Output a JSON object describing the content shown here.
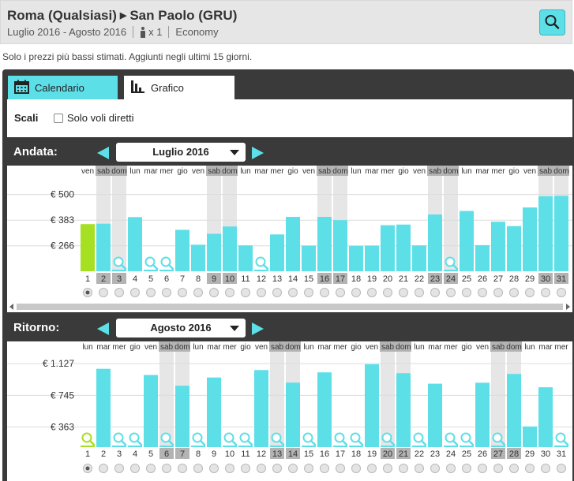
{
  "header": {
    "origin": "Roma (Qualsiasi)",
    "destination": "San Paolo (GRU)",
    "dates": "Luglio 2016 - Agosto 2016",
    "passengers": "x 1",
    "cabin": "Economy"
  },
  "note": "Solo i prezzi più bassi stimati. Aggiunti negli ultimi 15 giorni.",
  "tabs": [
    {
      "label": "Calendario",
      "icon": "calendar-icon",
      "active": false
    },
    {
      "label": "Grafico",
      "icon": "bar-chart-icon",
      "active": true
    }
  ],
  "filters": {
    "scale_label": "Scali",
    "direct_only_label": "Solo voli diretti",
    "direct_only_checked": false
  },
  "colors": {
    "accent": "#5ddfe8",
    "selected": "#a6e022",
    "weekend_header": "#b3b3b3",
    "weekend_col": "#e6e6e6"
  },
  "chart_data": [
    {
      "type": "bar",
      "section_label": "Andata:",
      "month": "Luglio 2016",
      "yticks": [
        {
          "value": 500,
          "label": "€ 500"
        },
        {
          "value": 383,
          "label": "€ 383"
        },
        {
          "value": 266,
          "label": "€ 266"
        }
      ],
      "ylim": [
        150,
        560
      ],
      "days": [
        "1",
        "2",
        "3",
        "4",
        "5",
        "6",
        "7",
        "8",
        "9",
        "10",
        "11",
        "12",
        "13",
        "14",
        "15",
        "16",
        "17",
        "18",
        "19",
        "20",
        "21",
        "22",
        "23",
        "24",
        "25",
        "26",
        "27",
        "28",
        "29",
        "30",
        "31"
      ],
      "weekdays": [
        "ven",
        "sab",
        "dom",
        "lun",
        "mar",
        "mer",
        "gio",
        "ven",
        "sab",
        "dom",
        "lun",
        "mar",
        "mer",
        "gio",
        "ven",
        "sab",
        "dom",
        "lun",
        "mar",
        "mer",
        "gio",
        "ven",
        "sab",
        "dom",
        "lun",
        "mar",
        "mer",
        "gio",
        "ven",
        "sab",
        "dom"
      ],
      "weekend": [
        false,
        true,
        true,
        false,
        false,
        false,
        false,
        false,
        true,
        true,
        false,
        false,
        false,
        false,
        false,
        true,
        true,
        false,
        false,
        false,
        false,
        false,
        true,
        true,
        false,
        false,
        false,
        false,
        false,
        true,
        true
      ],
      "values": [
        365,
        367,
        null,
        397,
        null,
        null,
        339,
        271,
        321,
        354,
        268,
        null,
        318,
        398,
        267,
        398,
        383,
        266,
        267,
        360,
        363,
        268,
        409,
        null,
        425,
        269,
        376,
        356,
        441,
        492,
        494
      ],
      "selected_index": 0
    },
    {
      "type": "bar",
      "section_label": "Ritorno:",
      "month": "Agosto 2016",
      "yticks": [
        {
          "value": 1127,
          "label": "€ 1.127"
        },
        {
          "value": 745,
          "label": "€ 745"
        },
        {
          "value": 363,
          "label": "€ 363"
        }
      ],
      "ylim": [
        120,
        1300
      ],
      "days": [
        "1",
        "2",
        "3",
        "4",
        "5",
        "6",
        "7",
        "8",
        "9",
        "10",
        "11",
        "12",
        "13",
        "14",
        "15",
        "16",
        "17",
        "18",
        "19",
        "20",
        "21",
        "22",
        "23",
        "24",
        "25",
        "26",
        "27",
        "28",
        "29",
        "30",
        "31"
      ],
      "weekdays": [
        "lun",
        "mar",
        "mer",
        "gio",
        "ven",
        "sab",
        "dom",
        "lun",
        "mar",
        "mer",
        "gio",
        "ven",
        "sab",
        "dom",
        "lun",
        "mar",
        "mer",
        "gio",
        "ven",
        "sab",
        "dom",
        "lun",
        "mar",
        "mer",
        "gio",
        "ven",
        "sab",
        "dom",
        "lun",
        "mar",
        "mer"
      ],
      "weekend": [
        false,
        false,
        false,
        false,
        false,
        true,
        true,
        false,
        false,
        false,
        false,
        false,
        true,
        true,
        false,
        false,
        false,
        false,
        false,
        true,
        true,
        false,
        false,
        false,
        false,
        false,
        true,
        true,
        false,
        false,
        false
      ],
      "values": [
        null,
        1065,
        null,
        null,
        990,
        null,
        861,
        null,
        960,
        null,
        null,
        1050,
        null,
        898,
        null,
        1022,
        null,
        null,
        1120,
        null,
        1012,
        null,
        885,
        null,
        null,
        897,
        null,
        1003,
        369,
        842,
        null
      ],
      "selected_index": 0
    }
  ]
}
